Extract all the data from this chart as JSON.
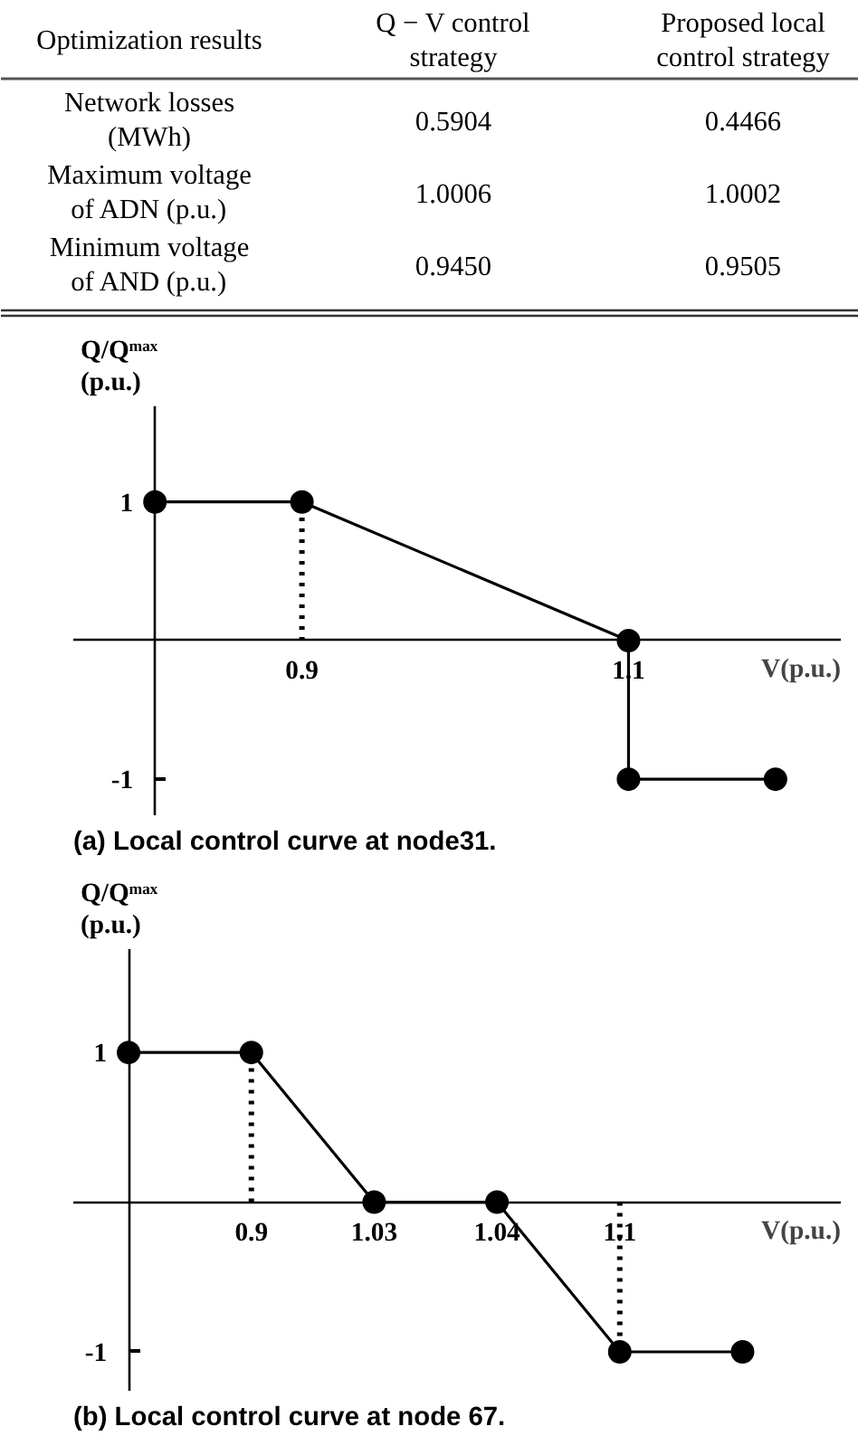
{
  "chart_data": [
    {
      "type": "other",
      "ylabel": "Optimization results",
      "categories": [
        "Network losses (MWh)",
        "Maximum voltage of ADN (p.u.)",
        "Minimum voltage of AND (p.u.)"
      ],
      "data_labels": true,
      "series": [
        {
          "name": "Q − V control strategy",
          "values": [
            0.5904,
            1.0006,
            0.945
          ],
          "value_labels": [
            "0.5904",
            "1.0006",
            "0.9450"
          ]
        },
        {
          "name": "Proposed local control strategy",
          "values": [
            0.4466,
            1.0002,
            0.9505
          ],
          "value_labels": [
            "0.4466",
            "1.0002",
            "0.9505"
          ]
        }
      ]
    },
    {
      "type": "line",
      "title": "(a) Local control curve at node31.",
      "xlabel": "V(p.u.)",
      "ylabel": "Q/Qᵐᵃˣ\n(p.u.)",
      "marker": "circle",
      "line_style": "solid",
      "grid": false,
      "xlim": [
        0.76,
        1.23
      ],
      "ylim": [
        -1.26,
        1.69
      ],
      "xticks": [
        0.9,
        1.1
      ],
      "yticks": [
        1,
        -1
      ],
      "series": [
        {
          "color": "#000000",
          "x": [
            0.81,
            0.9,
            1.1,
            1.1,
            1.19
          ],
          "values": [
            1,
            1,
            0,
            -1,
            -1
          ]
        }
      ],
      "ref_lines": [
        {
          "axis": "x",
          "value": 0.9,
          "line_style": "dotted",
          "color": "#000000"
        }
      ]
    },
    {
      "type": "line",
      "title": "(b) Local control curve at node 67.",
      "xlabel": "V(p.u.)",
      "ylabel": "Q/Qᵐᵃˣ\n(p.u.)",
      "marker": "circle",
      "line_style": "solid",
      "grid": false,
      "categories": [
        null,
        "0.9",
        "1.03",
        "1.04",
        "1.1",
        null
      ],
      "ylim": [
        -1.26,
        1.69
      ],
      "yticks": [
        1,
        -1
      ],
      "series": [
        {
          "color": "#000000",
          "values": [
            1,
            1,
            0,
            0,
            -1,
            -1
          ]
        }
      ],
      "ref_lines": [
        {
          "axis": "x",
          "value": "0.9",
          "line_style": "dotted",
          "color": "#000000"
        },
        {
          "axis": "x",
          "value": "1.1",
          "line_style": "dotted",
          "color": "#000000"
        }
      ]
    }
  ]
}
